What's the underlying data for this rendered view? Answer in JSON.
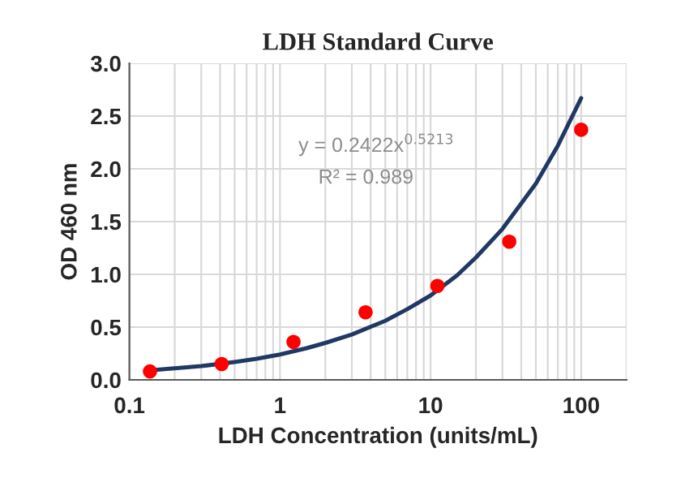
{
  "chart_data": {
    "type": "scatter",
    "title": "LDH Standard Curve",
    "xlabel": "LDH Concentration (units/mL)",
    "ylabel": "OD 460 nm",
    "annotations": [
      "y = 0.2422x$^{0.5213}$",
      "R² = 0.989"
    ],
    "series": [
      {
        "color": "#ff0000",
        "marker": "circle",
        "x": [
          0.137,
          0.41,
          1.23,
          3.7,
          11.1,
          33.3,
          100
        ],
        "values": [
          0.08,
          0.15,
          0.36,
          0.64,
          0.89,
          1.31,
          2.37
        ]
      },
      {
        "type": "line",
        "color": "#203864",
        "line_style": "solid",
        "marker": "none",
        "x": [
          0.137,
          0.2,
          0.3,
          0.5,
          0.7,
          1,
          1.5,
          2,
          3,
          5,
          7,
          10,
          15,
          20,
          30,
          50,
          70,
          100
        ],
        "values": [
          0.09,
          0.11,
          0.13,
          0.17,
          0.2,
          0.24,
          0.3,
          0.35,
          0.43,
          0.56,
          0.67,
          0.8,
          0.99,
          1.16,
          1.43,
          1.86,
          2.22,
          2.67
        ]
      }
    ],
    "log": "x",
    "xlim": [
      0.1,
      200
    ],
    "xticks": [
      0.1,
      1,
      10,
      100
    ],
    "ylim": [
      0,
      3.0
    ],
    "yticks": [
      {
        "value": 0,
        "label": "0.0"
      },
      {
        "value": 0.5,
        "label": "0.5"
      },
      {
        "value": 1,
        "label": "1.0"
      },
      {
        "value": 1.5,
        "label": "1.5"
      },
      {
        "value": 2,
        "label": "2.0"
      },
      {
        "value": 2.5,
        "label": "2.5"
      },
      {
        "value": 3,
        "label": "3.0"
      }
    ],
    "grid": true
  }
}
